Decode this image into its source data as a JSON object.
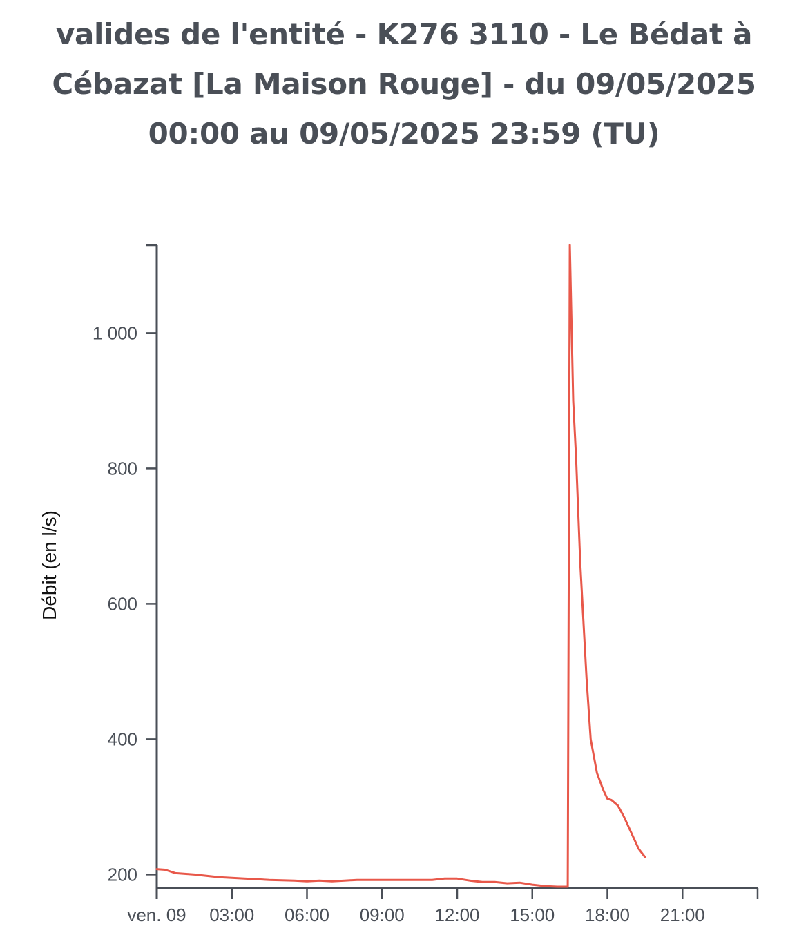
{
  "chart_data": {
    "type": "line",
    "title": "valides de l'entité - K276 3110 - Le Bédat à Cébazat [La Maison Rouge] - du 09/05/2025 00:00 au 09/05/2025 23:59 (TU)",
    "ylabel": "Débit (en l/s)",
    "xlabel": "",
    "xlim": [
      "09/05/2025 00:00",
      "09/05/2025 24:00"
    ],
    "ylim": [
      180,
      1130
    ],
    "x_ticks": [
      "ven. 09",
      "03:00",
      "06:00",
      "09:00",
      "12:00",
      "15:00",
      "18:00",
      "21:00"
    ],
    "y_ticks": [
      {
        "value": 200,
        "label": "200"
      },
      {
        "value": 400,
        "label": "400"
      },
      {
        "value": 600,
        "label": "600"
      },
      {
        "value": 800,
        "label": "800"
      },
      {
        "value": 1000,
        "label": "1 000"
      }
    ],
    "grid": false,
    "color": "#e8584a",
    "x_unit": "heure",
    "series": [
      {
        "x": [
          "00:00",
          "00:20",
          "00:45",
          "01:30",
          "02:30",
          "03:30",
          "04:30",
          "05:30",
          "06:00",
          "06:30",
          "07:00",
          "07:30",
          "08:00",
          "08:30",
          "09:00",
          "10:00",
          "11:00",
          "11:30",
          "12:00",
          "12:30",
          "13:00",
          "13:30",
          "14:00",
          "14:30",
          "15:00",
          "15:30",
          "16:00",
          "16:20",
          "16:25",
          "16:30",
          "16:38",
          "16:45",
          "16:55",
          "17:10",
          "17:20",
          "17:35",
          "17:50",
          "18:00",
          "18:10",
          "18:25",
          "18:40",
          "19:00",
          "19:15",
          "19:30"
        ],
        "y": [
          208,
          207,
          202,
          200,
          196,
          194,
          192,
          191,
          190,
          191,
          190,
          191,
          192,
          192,
          192,
          192,
          192,
          194,
          194,
          191,
          189,
          189,
          187,
          188,
          185,
          183,
          182,
          182,
          182,
          1130,
          900,
          815,
          660,
          490,
          400,
          350,
          325,
          312,
          310,
          302,
          285,
          258,
          238,
          226
        ]
      }
    ]
  }
}
